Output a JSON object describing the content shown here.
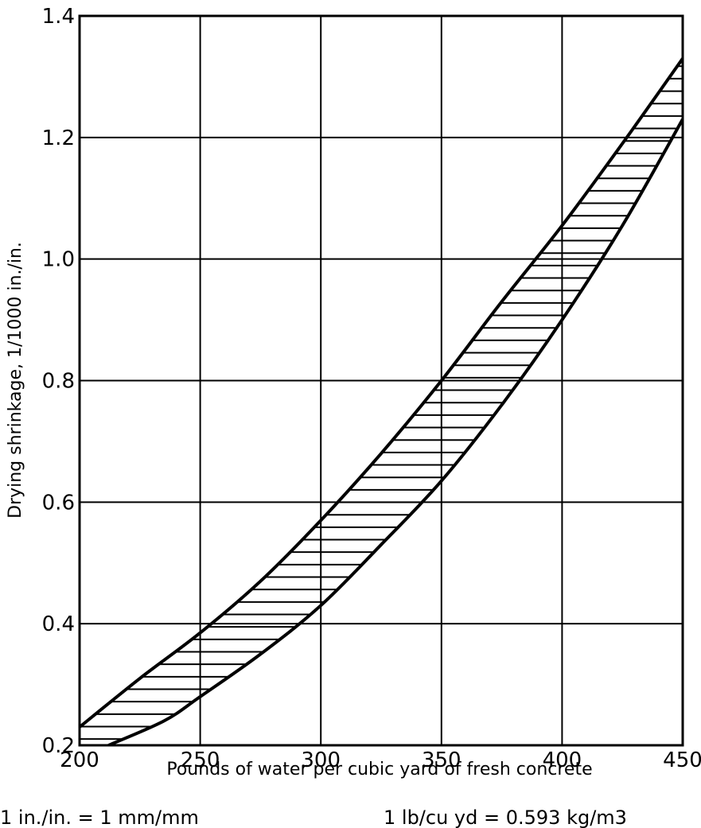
{
  "chart_data": {
    "type": "area",
    "xlabel": "Pounds of water per cubic yard of fresh concrete",
    "ylabel": "Drying shrinkage, 1/1000 in./in.",
    "xlim": [
      200,
      450
    ],
    "ylim": [
      0.2,
      1.4
    ],
    "x_ticks": [
      "200",
      "250",
      "300",
      "350",
      "400",
      "450"
    ],
    "y_ticks": [
      "0.2",
      "0.4",
      "0.6",
      "0.8",
      "1.0",
      "1.2",
      "1.4"
    ],
    "grid": true,
    "band_fill": "horizontal hatching",
    "series": [
      {
        "values_x": [
          200,
          225,
          250,
          275,
          300,
          325,
          350,
          375,
          400,
          425,
          450
        ],
        "values_y": [
          0.23,
          0.31,
          0.385,
          0.47,
          0.57,
          0.68,
          0.8,
          0.93,
          1.055,
          1.19,
          1.33
        ]
      },
      {
        "values_x": [
          212,
          235,
          250,
          275,
          300,
          325,
          350,
          375,
          400,
          425,
          450
        ],
        "values_y": [
          0.2,
          0.24,
          0.28,
          0.35,
          0.43,
          0.53,
          0.635,
          0.76,
          0.9,
          1.055,
          1.23
        ]
      }
    ],
    "annotations": [
      "1 in./in. = 1 mm/mm",
      "1 lb/cu yd = 0.593 kg/m3"
    ]
  }
}
